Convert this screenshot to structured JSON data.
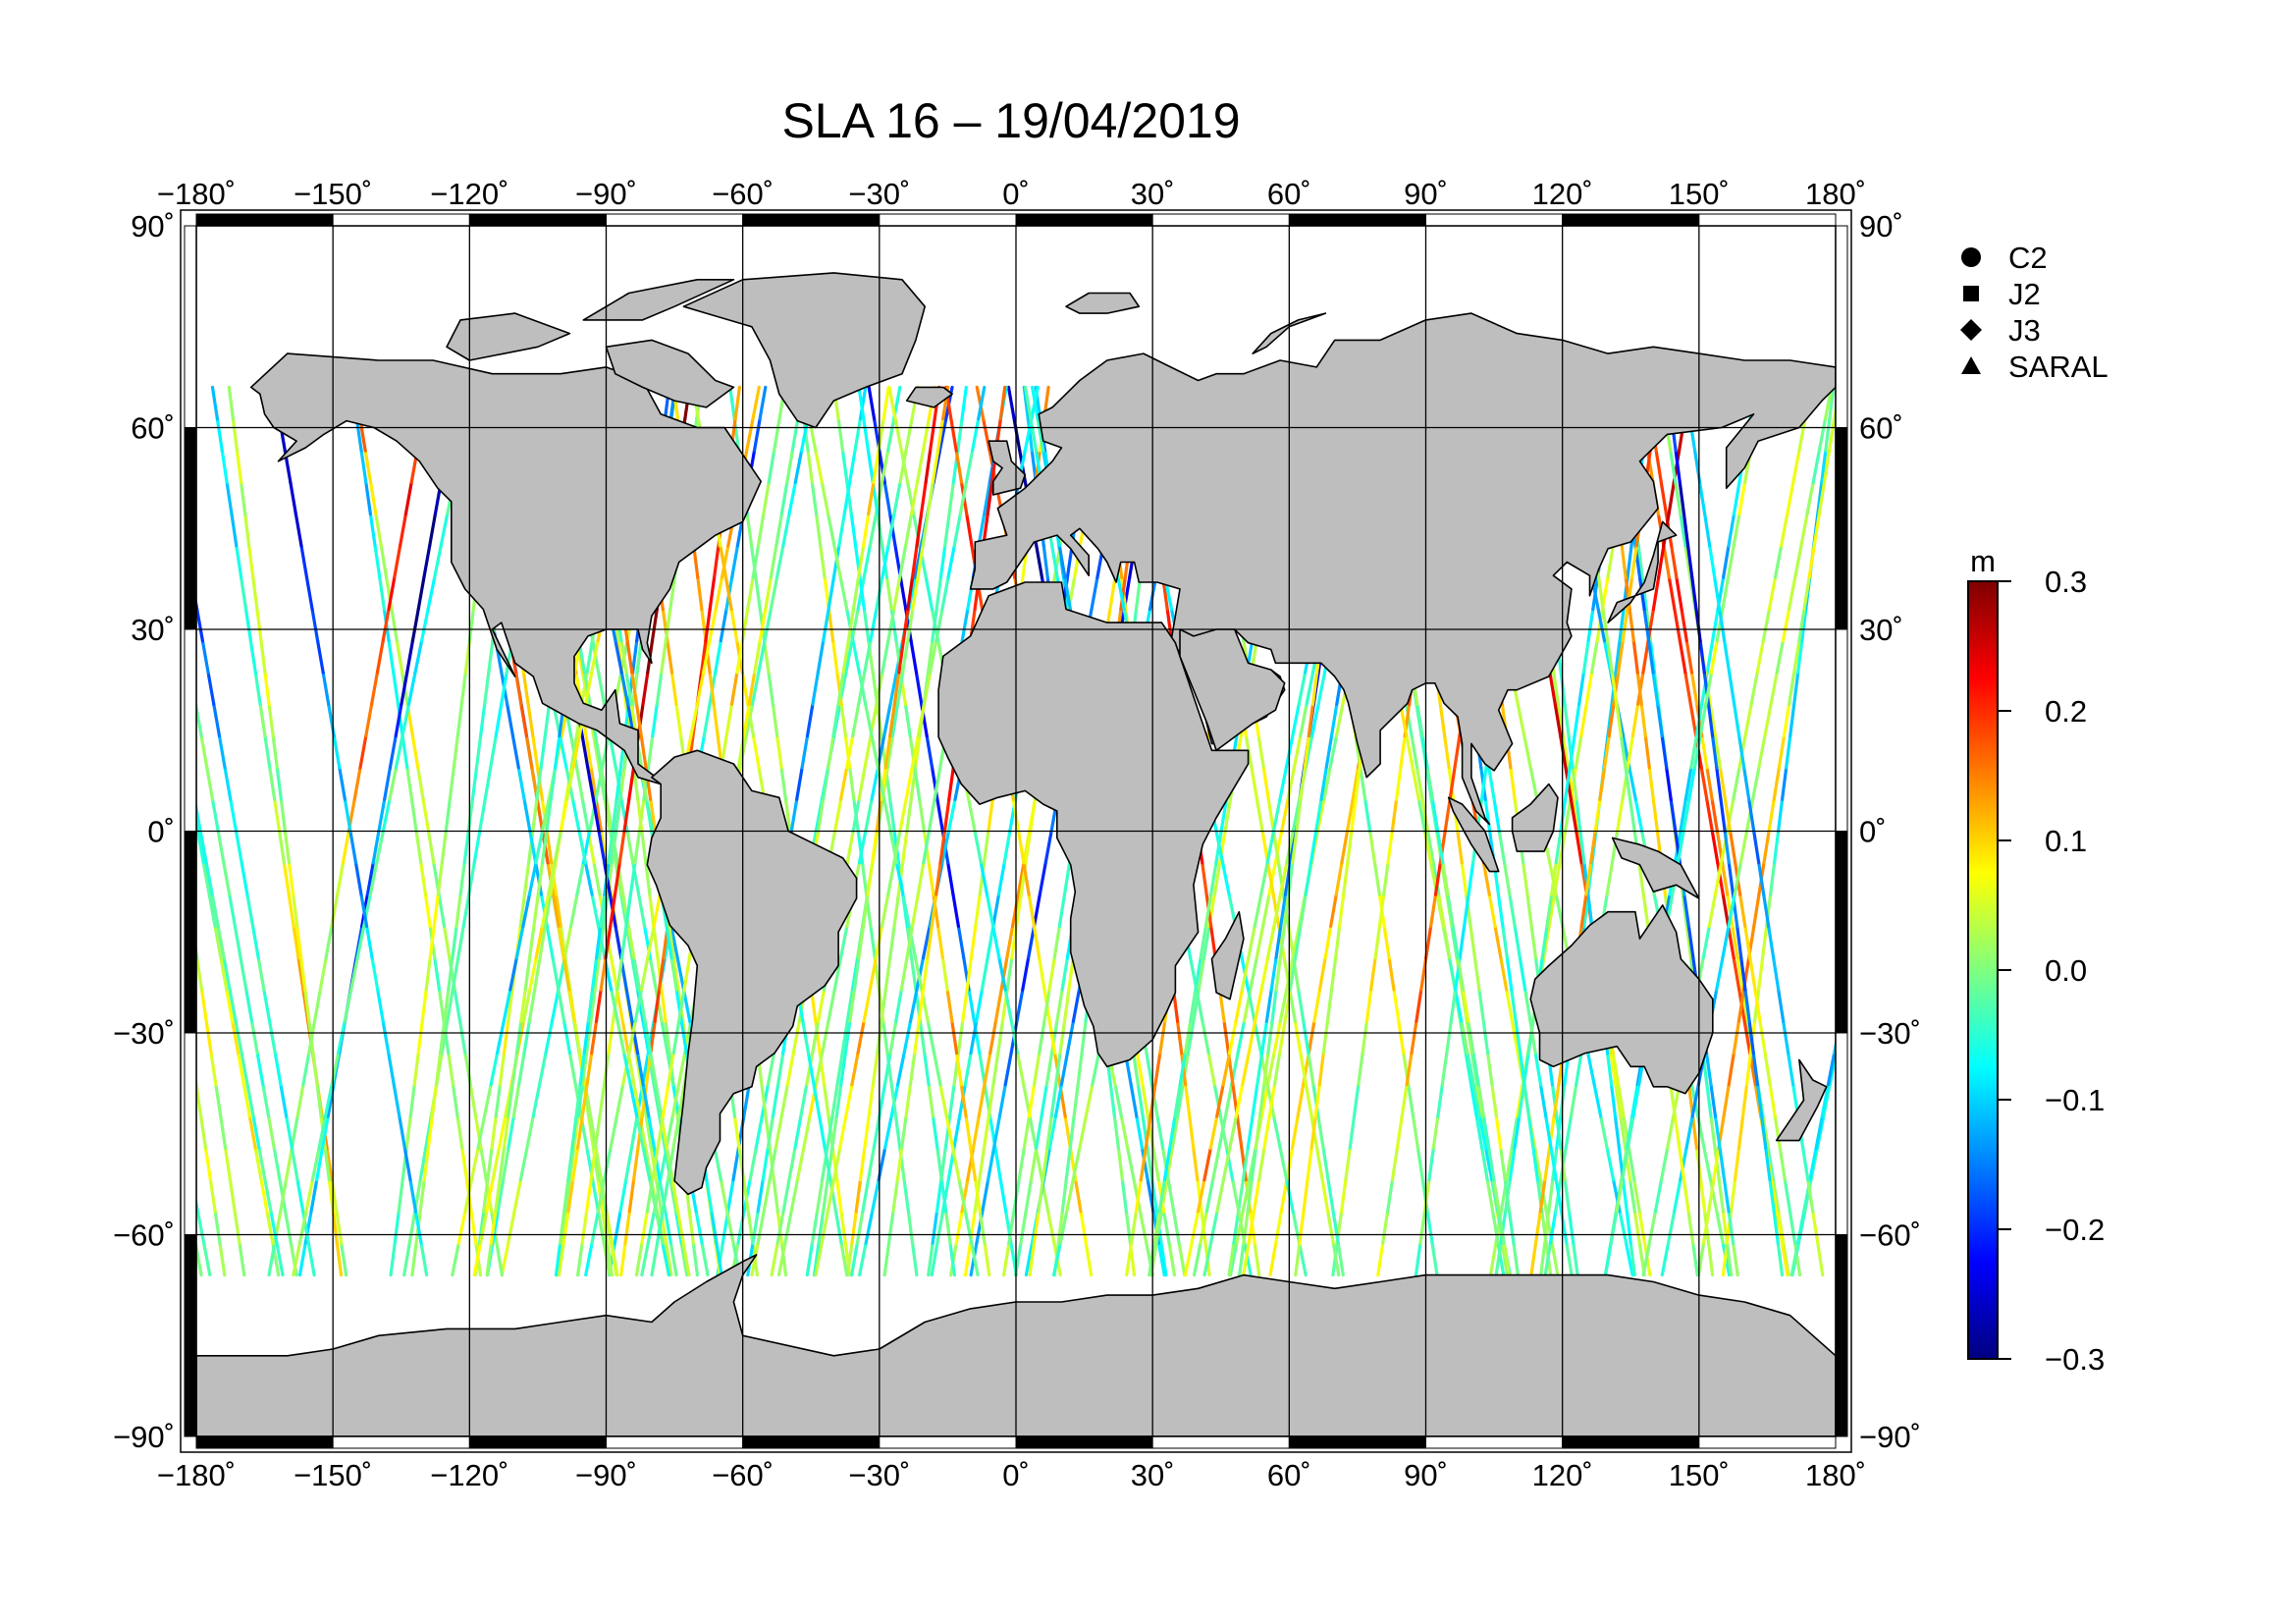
{
  "title": "SLA 16 – 19/04/2019",
  "map": {
    "projection": "plate-carree",
    "lon_range": [
      -180,
      180
    ],
    "lat_range": [
      -90,
      90
    ],
    "lon_ticks": [
      -180,
      -150,
      -120,
      -90,
      -60,
      -30,
      0,
      30,
      60,
      90,
      120,
      150,
      180
    ],
    "lat_ticks": [
      -90,
      -60,
      -30,
      0,
      30,
      60,
      90
    ],
    "lon_tick_labels": [
      "−180˚",
      "−150˚",
      "−120˚",
      "−90˚",
      "−60˚",
      "−30˚",
      "0˚",
      "30˚",
      "60˚",
      "90˚",
      "120˚",
      "150˚",
      "180˚"
    ],
    "lat_tick_labels": [
      "−90˚",
      "−60˚",
      "−30˚",
      "0˚",
      "30˚",
      "60˚",
      "90˚"
    ],
    "grid": true,
    "land_color": "#bebebe",
    "coastline_color": "#000000"
  },
  "legend": {
    "placement": "top-right",
    "items": [
      {
        "label": "C2",
        "marker": "circle"
      },
      {
        "label": "J2",
        "marker": "square"
      },
      {
        "label": "J3",
        "marker": "diamond"
      },
      {
        "label": "SARAL",
        "marker": "triangle"
      }
    ]
  },
  "colorbar": {
    "unit": "m",
    "min": -0.3,
    "max": 0.3,
    "tick_values": [
      0.3,
      0.2,
      0.1,
      0.0,
      -0.1,
      -0.2,
      -0.3
    ],
    "tick_labels": [
      "0.3",
      "0.2",
      "0.1",
      "0.0",
      "−0.1",
      "−0.2",
      "−0.3"
    ],
    "colormap": [
      "#00007f",
      "#0000ff",
      "#007fff",
      "#00ffff",
      "#7fff7f",
      "#ffff00",
      "#ff7f00",
      "#ff0000",
      "#7f0000"
    ]
  },
  "chart_data": {
    "type": "scatter",
    "title": "SLA 16 – 19/04/2019",
    "description_units": "lon/lat degrees, value in m",
    "satellite_tracks": {
      "missions": [
        "C2",
        "J2",
        "J3",
        "SARAL"
      ],
      "ocean_lat_coverage": [
        -66,
        66
      ],
      "value_range": [
        -0.3,
        0.3
      ]
    }
  }
}
